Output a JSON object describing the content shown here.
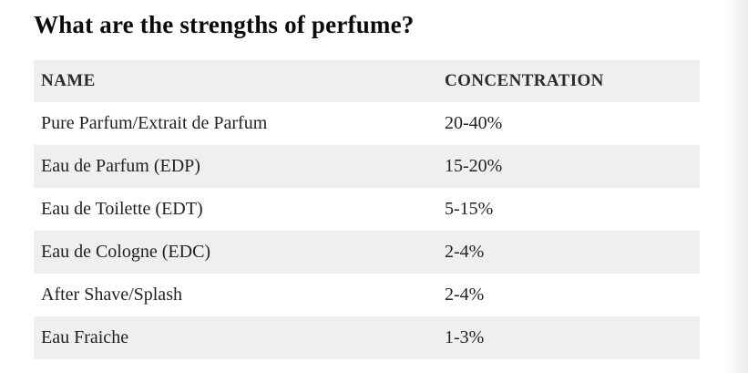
{
  "page": {
    "title": "What are the strengths of perfume?"
  },
  "table": {
    "headers": {
      "name": "NAME",
      "concentration": "CONCENTRATION"
    },
    "rows": [
      {
        "name": "Pure Parfum/Extrait de Parfum",
        "concentration": "20-40%"
      },
      {
        "name": "Eau de Parfum (EDP)",
        "concentration": "15-20%"
      },
      {
        "name": "Eau de Toilette (EDT)",
        "concentration": "5-15%"
      },
      {
        "name": "Eau de Cologne (EDC)",
        "concentration": "2-4%"
      },
      {
        "name": "After Shave/Splash",
        "concentration": "2-4%"
      },
      {
        "name": "Eau Fraiche",
        "concentration": "1-3%"
      }
    ],
    "colors": {
      "stripe_background": "#efefef",
      "row_background": "#ffffff",
      "text": "#222222",
      "title_text": "#0a0a0a"
    }
  }
}
